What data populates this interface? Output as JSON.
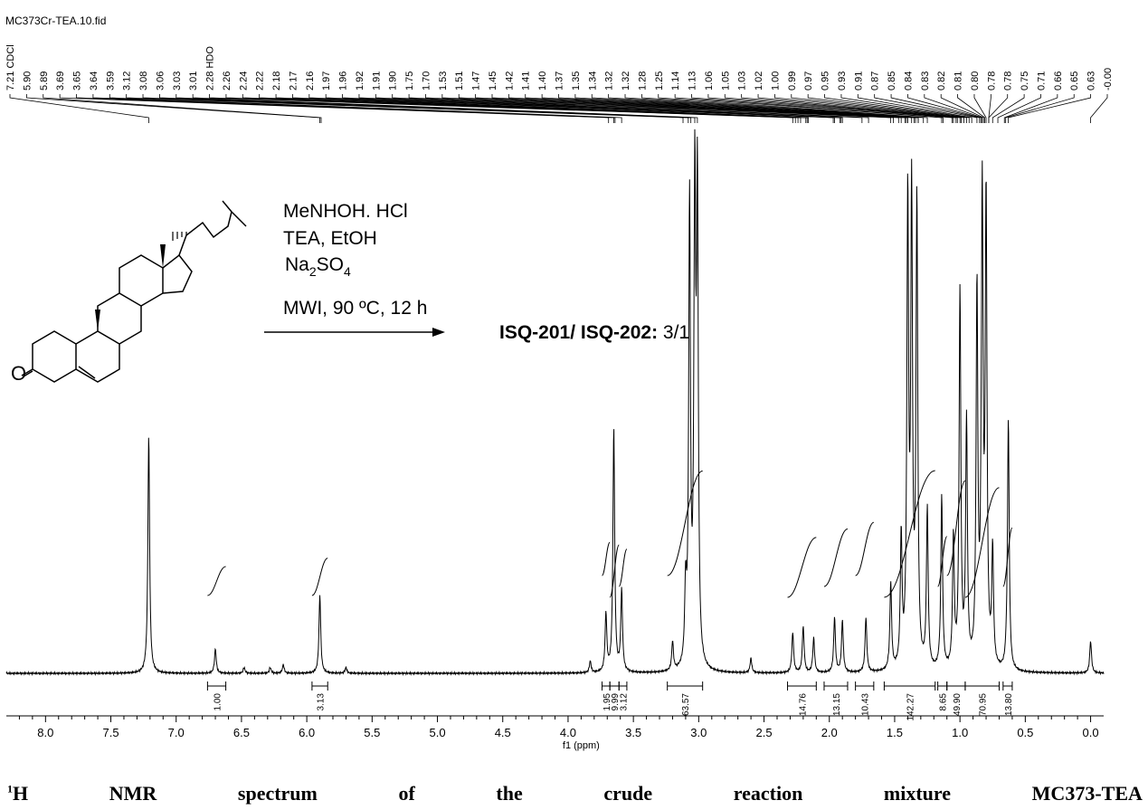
{
  "file_name": "MC373Cr-TEA.10.fid",
  "caption": {
    "superscript": "1",
    "words": [
      "H",
      "NMR",
      "spectrum",
      "of",
      "the",
      "crude",
      "reaction",
      "mixture",
      "MC373-TEA"
    ]
  },
  "reaction": {
    "reagents": [
      "MeNHOH. HCl",
      "TEA, EtOH"
    ],
    "na2so4": {
      "na": "Na",
      "s2": "2",
      "so": "SO",
      "s4": "4"
    },
    "conditions": "MWI, 90 ºC, 12 h",
    "product_bold": "ISQ-201/ ISQ-202:",
    "product_ratio": " 3/1",
    "substrate_atom": "O"
  },
  "chart_data": {
    "type": "line",
    "title": "",
    "xlabel": "f1 (ppm)",
    "xlim": [
      8.3,
      -0.1
    ],
    "x_reversed": true,
    "x_ticks": [
      "8.0",
      "7.5",
      "7.0",
      "6.5",
      "6.0",
      "5.5",
      "5.0",
      "4.5",
      "4.0",
      "3.5",
      "3.0",
      "2.5",
      "2.0",
      "1.5",
      "1.0",
      "0.5",
      "0.0"
    ],
    "x_tick_values": [
      8.0,
      7.5,
      7.0,
      6.5,
      6.0,
      5.5,
      5.0,
      4.5,
      4.0,
      3.5,
      3.0,
      2.5,
      2.0,
      1.5,
      1.0,
      0.5,
      0.0
    ],
    "peak_labels": [
      "7.21 CDCl",
      "5.90",
      "5.89",
      "3.69",
      "3.65",
      "3.64",
      "3.59",
      "3.12",
      "3.08",
      "3.06",
      "3.03",
      "3.01",
      "2.28 HDO",
      "2.26",
      "2.24",
      "2.22",
      "2.18",
      "2.17",
      "2.16",
      "1.97",
      "1.96",
      "1.92",
      "1.91",
      "1.90",
      "1.75",
      "1.70",
      "1.53",
      "1.51",
      "1.47",
      "1.45",
      "1.42",
      "1.41",
      "1.40",
      "1.37",
      "1.35",
      "1.34",
      "1.32",
      "1.32",
      "1.28",
      "1.25",
      "1.14",
      "1.13",
      "1.06",
      "1.05",
      "1.03",
      "1.02",
      "1.00",
      "0.99",
      "0.97",
      "0.95",
      "0.93",
      "0.91",
      "0.87",
      "0.85",
      "0.84",
      "0.83",
      "0.82",
      "0.81",
      "0.80",
      "0.78",
      "0.78",
      "0.75",
      "0.71",
      "0.66",
      "0.65",
      "0.63",
      "-0.00"
    ],
    "peaks": [
      {
        "ppm": 7.21,
        "height": 0.82
      },
      {
        "ppm": 6.7,
        "height": 0.085
      },
      {
        "ppm": 6.48,
        "height": 0.02
      },
      {
        "ppm": 6.28,
        "height": 0.02
      },
      {
        "ppm": 6.18,
        "height": 0.03
      },
      {
        "ppm": 5.9,
        "height": 0.27
      },
      {
        "ppm": 5.7,
        "height": 0.02
      },
      {
        "ppm": 3.83,
        "height": 0.04
      },
      {
        "ppm": 3.71,
        "height": 0.2
      },
      {
        "ppm": 3.65,
        "height": 0.84
      },
      {
        "ppm": 3.59,
        "height": 0.28
      },
      {
        "ppm": 3.2,
        "height": 0.1
      },
      {
        "ppm": 3.1,
        "height": 0.25
      },
      {
        "ppm": 3.07,
        "height": 1.6
      },
      {
        "ppm": 3.03,
        "height": 1.6
      },
      {
        "ppm": 3.01,
        "height": 1.6
      },
      {
        "ppm": 2.6,
        "height": 0.05
      },
      {
        "ppm": 2.28,
        "height": 0.14
      },
      {
        "ppm": 2.2,
        "height": 0.16
      },
      {
        "ppm": 2.12,
        "height": 0.12
      },
      {
        "ppm": 1.96,
        "height": 0.19
      },
      {
        "ppm": 1.9,
        "height": 0.18
      },
      {
        "ppm": 1.72,
        "height": 0.19
      },
      {
        "ppm": 1.53,
        "height": 0.3
      },
      {
        "ppm": 1.45,
        "height": 0.45
      },
      {
        "ppm": 1.4,
        "height": 1.6
      },
      {
        "ppm": 1.37,
        "height": 1.6
      },
      {
        "ppm": 1.33,
        "height": 1.6
      },
      {
        "ppm": 1.25,
        "height": 0.55
      },
      {
        "ppm": 1.14,
        "height": 0.6
      },
      {
        "ppm": 1.05,
        "height": 0.45
      },
      {
        "ppm": 1.0,
        "height": 1.3
      },
      {
        "ppm": 0.95,
        "height": 0.85
      },
      {
        "ppm": 0.87,
        "height": 1.3
      },
      {
        "ppm": 0.83,
        "height": 1.6
      },
      {
        "ppm": 0.8,
        "height": 1.6
      },
      {
        "ppm": 0.75,
        "height": 0.4
      },
      {
        "ppm": 0.63,
        "height": 0.87
      },
      {
        "ppm": 0.0,
        "height": 0.11
      }
    ],
    "integrals": [
      {
        "from": 6.76,
        "to": 6.62,
        "value": "1.00"
      },
      {
        "from": 5.96,
        "to": 5.84,
        "value": "3.13"
      },
      {
        "from": 3.74,
        "to": 3.68,
        "value": "1.95"
      },
      {
        "from": 3.68,
        "to": 3.61,
        "value": "9.99"
      },
      {
        "from": 3.61,
        "to": 3.55,
        "value": "3.12"
      },
      {
        "from": 3.24,
        "to": 2.97,
        "value": "63.57"
      },
      {
        "from": 2.32,
        "to": 2.1,
        "value": "14.76"
      },
      {
        "from": 2.04,
        "to": 1.86,
        "value": "13.15"
      },
      {
        "from": 1.8,
        "to": 1.66,
        "value": "10.43"
      },
      {
        "from": 1.58,
        "to": 1.19,
        "value": "142.27"
      },
      {
        "from": 1.17,
        "to": 1.1,
        "value": "8.65"
      },
      {
        "from": 1.1,
        "to": 0.96,
        "value": "49.90"
      },
      {
        "from": 0.96,
        "to": 0.7,
        "value": "70.95"
      },
      {
        "from": 0.67,
        "to": 0.6,
        "value": "13.80"
      }
    ]
  }
}
